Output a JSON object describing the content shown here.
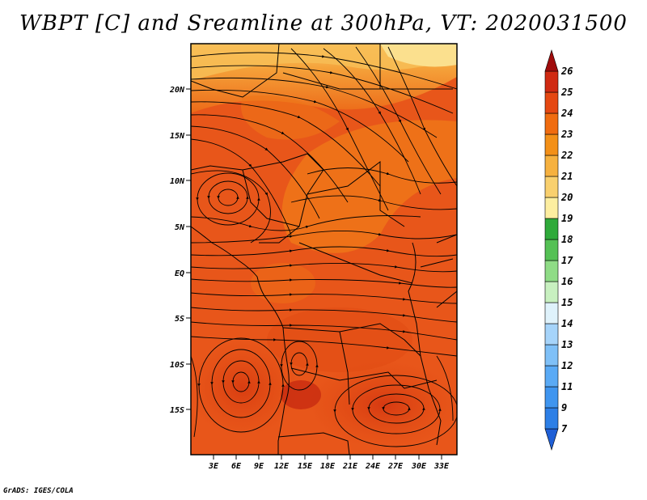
{
  "title": "WBPT [C] and Sreamline at 300hPa, VT: 2020031500",
  "credit": "GrADS: IGES/COLA",
  "lat_labels": [
    "20N",
    "15N",
    "10N",
    "5N",
    "EQ",
    "5S",
    "10S",
    "15S"
  ],
  "lon_labels": [
    "3E",
    "6E",
    "9E",
    "12E",
    "15E",
    "18E",
    "21E",
    "24E",
    "27E",
    "30E",
    "33E"
  ],
  "colorbar": {
    "levels": [
      "7",
      "9",
      "11",
      "12",
      "13",
      "14",
      "15",
      "16",
      "17",
      "18",
      "19",
      "20",
      "21",
      "22",
      "23",
      "24",
      "25",
      "26"
    ],
    "colors": [
      "#1f5fd6",
      "#2d7fe6",
      "#3f95ef",
      "#5aaaf5",
      "#7fc0f7",
      "#a6d4fa",
      "#dff2fb",
      "#c8f0c0",
      "#8fdc86",
      "#55c155",
      "#2faa3a",
      "#fdeea0",
      "#f9d06e",
      "#f6b13f",
      "#f39018",
      "#f06c10",
      "#e54812",
      "#d02a12",
      "#a00c0c"
    ]
  },
  "chart_data": {
    "type": "map",
    "variable": "WBPT [C]",
    "level": "300hPa",
    "valid_time": "2020031500",
    "lon_range": [
      0,
      35
    ],
    "lat_range": [
      -20,
      24
    ],
    "field_range": [
      19,
      25
    ],
    "features": [
      "streamlines",
      "cyclonic circulation near 5E 8N",
      "anticyclone near 6E 12S",
      "anticyclone near 27E 15S"
    ]
  }
}
